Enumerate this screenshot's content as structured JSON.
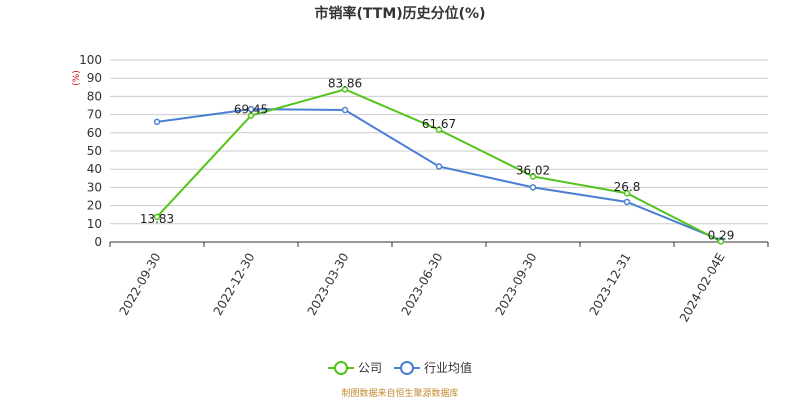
{
  "chart_data": {
    "type": "line",
    "title": "市销率(TTM)历史分位(%)",
    "y_unit": "(%)",
    "categories": [
      "2022-09-30",
      "2022-12-30",
      "2023-03-30",
      "2023-06-30",
      "2023-09-30",
      "2023-12-31",
      "2024-02-04E"
    ],
    "ylim": [
      0,
      100
    ],
    "yticks": [
      0,
      10,
      20,
      30,
      40,
      50,
      60,
      70,
      80,
      90,
      100
    ],
    "grid": true,
    "legend_position": "bottom",
    "series": [
      {
        "name": "公司",
        "color": "#52c41a",
        "values": [
          13.83,
          69.45,
          83.86,
          61.67,
          36.02,
          26.8,
          0.29
        ],
        "labels": [
          "13.83",
          "69.45",
          "83.86",
          "61.67",
          "36.02",
          "26.8",
          "0.29"
        ]
      },
      {
        "name": "行业均值",
        "color": "#4a7fd4",
        "values": [
          66,
          73,
          72.5,
          41.5,
          30,
          22,
          1
        ]
      }
    ],
    "source": "制图数据来自恒生聚源数据库"
  }
}
